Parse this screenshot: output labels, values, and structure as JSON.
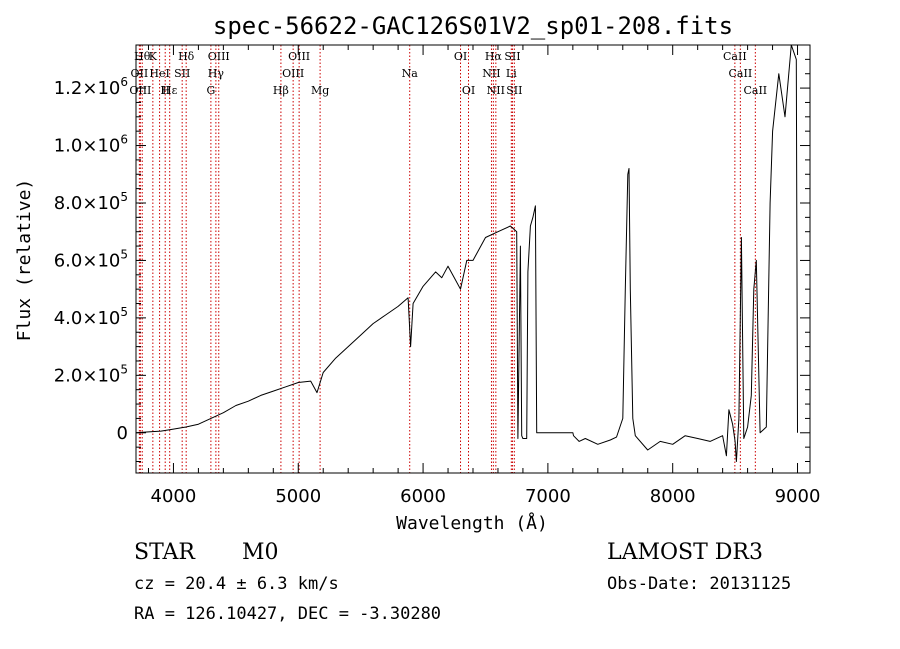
{
  "chart_data": {
    "type": "line",
    "title": "spec-56622-GAC126S01V2_sp01-208.fits",
    "xlabel": "Wavelength (Å)",
    "ylabel": "Flux (relative)",
    "xlim": [
      3700,
      9100
    ],
    "ylim": [
      -140000,
      1350000
    ],
    "x_ticks": [
      4000,
      5000,
      6000,
      7000,
      8000,
      9000
    ],
    "y_ticks": [
      {
        "value": 0,
        "mantissa": "0",
        "exp": ""
      },
      {
        "value": 200000,
        "mantissa": "2.0×10",
        "exp": "5"
      },
      {
        "value": 400000,
        "mantissa": "4.0×10",
        "exp": "5"
      },
      {
        "value": 600000,
        "mantissa": "6.0×10",
        "exp": "5"
      },
      {
        "value": 800000,
        "mantissa": "8.0×10",
        "exp": "5"
      },
      {
        "value": 1000000,
        "mantissa": "1.0×10",
        "exp": "6"
      },
      {
        "value": 1200000,
        "mantissa": "1.2×10",
        "exp": "6"
      }
    ],
    "series": [
      {
        "name": "flux",
        "segments": [
          [
            [
              3700,
              0
            ],
            [
              3800,
              3000
            ],
            [
              3900,
              6000
            ],
            [
              4000,
              13000
            ],
            [
              4100,
              20000
            ],
            [
              4200,
              30000
            ],
            [
              4300,
              50000
            ],
            [
              4400,
              70000
            ],
            [
              4500,
              95000
            ],
            [
              4600,
              110000
            ],
            [
              4700,
              130000
            ],
            [
              4800,
              145000
            ],
            [
              4900,
              160000
            ],
            [
              5000,
              175000
            ],
            [
              5100,
              180000
            ],
            [
              5150,
              140000
            ],
            [
              5200,
              210000
            ],
            [
              5300,
              260000
            ],
            [
              5400,
              300000
            ],
            [
              5500,
              340000
            ],
            [
              5600,
              380000
            ],
            [
              5700,
              410000
            ],
            [
              5800,
              440000
            ],
            [
              5880,
              470000
            ],
            [
              5900,
              300000
            ],
            [
              5920,
              450000
            ],
            [
              6000,
              510000
            ],
            [
              6100,
              560000
            ],
            [
              6150,
              540000
            ],
            [
              6200,
              580000
            ],
            [
              6250,
              540000
            ],
            [
              6300,
              500000
            ],
            [
              6350,
              600000
            ],
            [
              6400,
              600000
            ],
            [
              6500,
              680000
            ],
            [
              6600,
              700000
            ],
            [
              6700,
              720000
            ],
            [
              6750,
              700000
            ],
            [
              6760,
              -20000
            ],
            [
              6780,
              650000
            ],
            [
              6790,
              -10000
            ],
            [
              6800,
              -20000
            ],
            [
              6830,
              -20000
            ],
            [
              6840,
              560000
            ],
            [
              6860,
              720000
            ],
            [
              6880,
              750000
            ],
            [
              6900,
              790000
            ],
            [
              6910,
              0
            ],
            [
              6950,
              0
            ],
            [
              7000,
              0
            ],
            [
              7100,
              0
            ],
            [
              7200,
              0
            ],
            [
              7205,
              -10000
            ],
            [
              7250,
              -30000
            ],
            [
              7300,
              -20000
            ],
            [
              7400,
              -40000
            ],
            [
              7500,
              -25000
            ],
            [
              7550,
              -15000
            ],
            [
              7600,
              50000
            ],
            [
              7620,
              500000
            ],
            [
              7640,
              900000
            ],
            [
              7650,
              920000
            ],
            [
              7660,
              500000
            ],
            [
              7680,
              50000
            ],
            [
              7700,
              -10000
            ],
            [
              7800,
              -60000
            ],
            [
              7900,
              -30000
            ],
            [
              8000,
              -40000
            ],
            [
              8100,
              -10000
            ],
            [
              8200,
              -20000
            ],
            [
              8300,
              -30000
            ],
            [
              8400,
              -10000
            ],
            [
              8430,
              -80000
            ],
            [
              8450,
              80000
            ],
            [
              8480,
              30000
            ],
            [
              8500,
              -30000
            ],
            [
              8510,
              -100000
            ],
            [
              8530,
              50000
            ],
            [
              8550,
              680000
            ],
            [
              8570,
              -20000
            ],
            [
              8600,
              20000
            ],
            [
              8630,
              130000
            ],
            [
              8650,
              500000
            ],
            [
              8670,
              600000
            ],
            [
              8700,
              0
            ],
            [
              8750,
              20000
            ],
            [
              8780,
              800000
            ],
            [
              8800,
              1050000
            ],
            [
              8850,
              1250000
            ],
            [
              8900,
              1100000
            ],
            [
              8950,
              1350000
            ],
            [
              8990,
              1300000
            ],
            [
              9000,
              0
            ]
          ]
        ]
      }
    ],
    "lines": [
      {
        "wave": 3750,
        "labels": [
          "Hθ"
        ],
        "row": 0
      },
      {
        "wave": 3727,
        "labels": [
          "OII"
        ],
        "row": 1
      },
      {
        "wave": 3735,
        "labels": [
          "OIII"
        ],
        "row": 2
      },
      {
        "wave": 3835,
        "labels": [
          "K"
        ],
        "row": 0
      },
      {
        "wave": 3889,
        "labels": [
          "HeI"
        ],
        "row": 1
      },
      {
        "wave": 3970,
        "labels": [
          "Hε"
        ],
        "row": 2
      },
      {
        "wave": 3934,
        "labels": [
          "H"
        ],
        "row": 2
      },
      {
        "wave": 4070,
        "labels": [
          "SII"
        ],
        "row": 1
      },
      {
        "wave": 4102,
        "labels": [
          "Hδ"
        ],
        "row": 0
      },
      {
        "wave": 4300,
        "labels": [
          "G"
        ],
        "row": 2
      },
      {
        "wave": 4340,
        "labels": [
          "Hγ"
        ],
        "row": 1
      },
      {
        "wave": 4363,
        "labels": [
          "OIII"
        ],
        "row": 0
      },
      {
        "wave": 4861,
        "labels": [
          "Hβ"
        ],
        "row": 2
      },
      {
        "wave": 4959,
        "labels": [
          "OIII"
        ],
        "row": 1
      },
      {
        "wave": 5007,
        "labels": [
          "OIII"
        ],
        "row": 0
      },
      {
        "wave": 5175,
        "labels": [
          "Mg"
        ],
        "row": 2
      },
      {
        "wave": 5893,
        "labels": [
          "Na"
        ],
        "row": 1
      },
      {
        "wave": 6300,
        "labels": [
          "OI"
        ],
        "row": 0
      },
      {
        "wave": 6364,
        "labels": [
          "OI"
        ],
        "row": 2
      },
      {
        "wave": 6548,
        "labels": [
          "NII"
        ],
        "row": 1
      },
      {
        "wave": 6563,
        "labels": [
          "Hα"
        ],
        "row": 0
      },
      {
        "wave": 6583,
        "labels": [
          "NII"
        ],
        "row": 2
      },
      {
        "wave": 6707,
        "labels": [
          "Li"
        ],
        "row": 1
      },
      {
        "wave": 6716,
        "labels": [
          "SII"
        ],
        "row": 0
      },
      {
        "wave": 6731,
        "labels": [
          "SII"
        ],
        "row": 2
      },
      {
        "wave": 8498,
        "labels": [
          "CaII"
        ],
        "row": 0
      },
      {
        "wave": 8542,
        "labels": [
          "CaII"
        ],
        "row": 1
      },
      {
        "wave": 8662,
        "labels": [
          "CaII"
        ],
        "row": 2
      }
    ]
  },
  "info": {
    "object_type": "STAR",
    "subclass": "M0",
    "redshift": "cz = 20.4 ± 6.3 km/s",
    "coords": "RA = 126.10427, DEC =  -3.30280",
    "survey": "LAMOST DR3",
    "obs_date": "Obs-Date: 20131125"
  },
  "colors": {
    "line_marker": "#cc0000",
    "spectrum": "#000000"
  }
}
